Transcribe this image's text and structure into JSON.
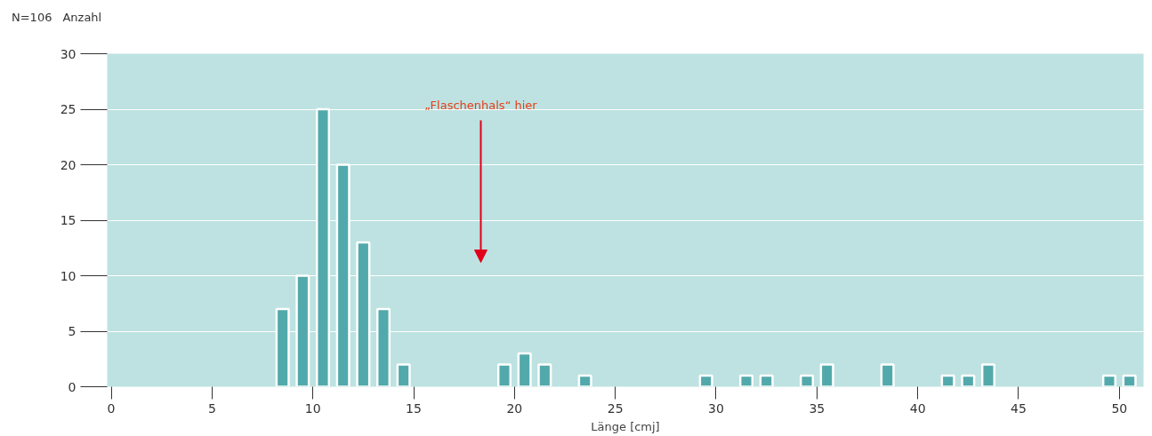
{
  "chart_data": {
    "type": "histogram",
    "xlabel": "Länge [cmj]",
    "ylabel": "Anzahl",
    "bins": [
      8,
      9,
      10,
      11,
      12,
      13,
      14,
      15,
      16,
      17,
      18,
      19,
      20,
      21,
      22,
      23,
      24,
      25,
      26,
      27,
      28,
      29,
      30,
      31,
      32,
      33,
      34,
      35,
      36,
      37,
      38,
      39,
      40,
      41,
      42,
      43,
      44,
      45,
      46,
      47,
      48,
      49,
      50,
      51
    ],
    "values": [
      7,
      10,
      25,
      20,
      13,
      7,
      2,
      0,
      0,
      0,
      0,
      2,
      3,
      2,
      0,
      1,
      0,
      0,
      0,
      0,
      0,
      1,
      0,
      1,
      1,
      0,
      1,
      2,
      0,
      0,
      2,
      0,
      0,
      1,
      1,
      2,
      0,
      0,
      0,
      0,
      0,
      1,
      1
    ],
    "color": "#52a9ab",
    "xlim": [
      -0.2,
      51.2
    ],
    "xticks": [
      0,
      5,
      10,
      15,
      20,
      25,
      30,
      35,
      40,
      45,
      50
    ],
    "ylim": [
      0,
      30
    ],
    "yticks": [
      0,
      5,
      10,
      15,
      20,
      25,
      30
    ],
    "grid": "y",
    "annotations": [
      "N=106",
      "„Flaschenhals“ hier"
    ]
  }
}
